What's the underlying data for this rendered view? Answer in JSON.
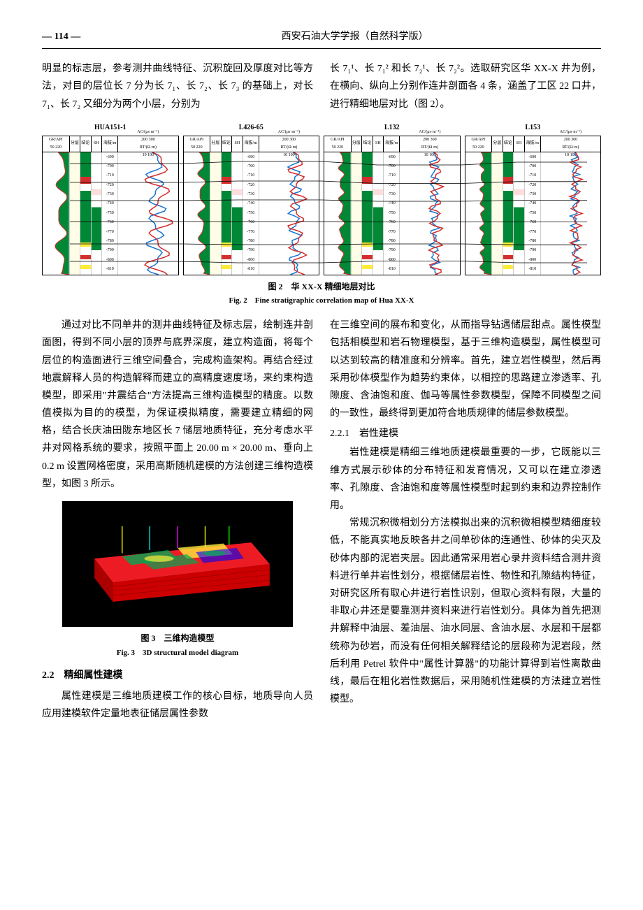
{
  "header": {
    "page_number": "— 114 —",
    "journal_name": "西安石油大学学报（自然科学版）"
  },
  "top_para_left": "明显的标志层，参考测井曲线特征、沉积旋回及厚度对比等方法，对目的层位长 7 分为长 7₁、长 7₂、长 7₃ 的基础上，对长 7₁、长 7₂ 又细分为两个小层，分别为",
  "top_para_right": "长 7₁¹、长 7₁² 和长 7₂¹、长 7₂²。选取研究区华 XX-X 井为例，在横向、纵向上分别作连井剖面各 4 条，涵盖了工区 22 口井，进行精细地层对比（图 2）。",
  "figure2": {
    "caption_cn": "图 2　华 XX-X 精细地层对比",
    "caption_en": "Fig. 2　Fine stratigraphic correlation map of Hua XX-X",
    "wells": [
      {
        "name": "HUA151-1"
      },
      {
        "name": "L426-65"
      },
      {
        "name": "L132"
      },
      {
        "name": "L153"
      }
    ],
    "track_headers": {
      "gr": "GR/API",
      "gr_scale": "50  220",
      "layer": "分层",
      "jielun": "结论",
      "sh": "SH",
      "depth": "海拔/m",
      "ac": "AC/(μs·m⁻¹)",
      "ac_scale": "200  300",
      "rt": "RT/(Ω·m)",
      "rt_scale": "10  100"
    },
    "depth_ticks": [
      "-690",
      "-700",
      "-710",
      "-720",
      "-730",
      "-740",
      "-750",
      "-760",
      "-770",
      "-780",
      "-790",
      "-800",
      "-810"
    ],
    "colors": {
      "oil": "#d32f2f",
      "sand": "#ffeb3b",
      "mud": "#008837",
      "gr_curve": "#d32f2f",
      "ac_curve": "#1976d2",
      "rt_curve": "#d32f2f"
    }
  },
  "mid_left_para": "通过对比不同单井的测井曲线特征及标志层，绘制连井剖面图，得到不同小层的顶界与底界深度，建立构造面，将每个层位的构造面进行三维空间叠合，完成构造架构。再结合经过地震解释人员的构造解释而建立的高精度速度场，来约束构造模型，即采用\"井震结合\"方法提高三维构造模型的精度。以数值模拟为目的的模型，为保证模拟精度，需要建立精细的网格，结合长庆油田陇东地区长 7 储层地质特征，充分考虑水平井对网格系统的要求，按照平面上 20.00 m × 20.00 m、垂向上 0.2 m 设置网格密度，采用高斯随机建模的方法创建三维构造模型，如图 3 所示。",
  "figure3": {
    "caption_cn": "图 3　三维构造模型",
    "caption_en": "Fig. 3　3D structural model diagram",
    "colors": {
      "background": "#000000",
      "red_layer": "#ed1c24",
      "yellow": "#ffeb3b",
      "green": "#00a651",
      "blue": "#0000ff",
      "wells": "#ffff00"
    }
  },
  "section_2_2": "2.2　精细属性建模",
  "para_2_2": "属性建模是三维地质建模工作的核心目标，地质导向人员应用建模软件定量地表征储层属性参数",
  "right_col_para1": "在三维空间的展布和变化，从而指导钻遇储层甜点。属性模型包括相模型和岩石物理模型，基于三维构造模型，属性模型可以达到较高的精准度和分辨率。首先，建立岩性模型，然后再采用砂体模型作为趋势约束体，以相控的思路建立渗透率、孔隙度、含油饱和度、伽马等属性参数模型，保障不同模型之间的一致性，最终得到更加符合地质规律的储层参数模型。",
  "section_2_2_1": "2.2.1　岩性建模",
  "right_col_para2": "岩性建模是精细三维地质建模最重要的一步，它既能以三维方式展示砂体的分布特征和发育情况，又可以在建立渗透率、孔隙度、含油饱和度等属性模型时起到约束和边界控制作用。",
  "right_col_para3": "常规沉积微相划分方法模拟出来的沉积微相模型精细度较低，不能真实地反映各井之间单砂体的连通性、砂体的尖灭及砂体内部的泥岩夹层。因此通常采用岩心录井资料结合测井资料进行单井岩性划分，根据储层岩性、物性和孔隙结构特征，对研究区所有取心井进行岩性识别，但取心资料有限，大量的非取心井还是要靠测井资料来进行岩性划分。具体为首先把测井解释中油层、差油层、油水同层、含油水层、水层和干层都统称为砂岩，而没有任何相关解释结论的层段称为泥岩段，然后利用 Petrel 软件中\"属性计算器\"的功能计算得到岩性离散曲线，最后在粗化岩性数据后，采用随机性建模的方法建立岩性模型。"
}
